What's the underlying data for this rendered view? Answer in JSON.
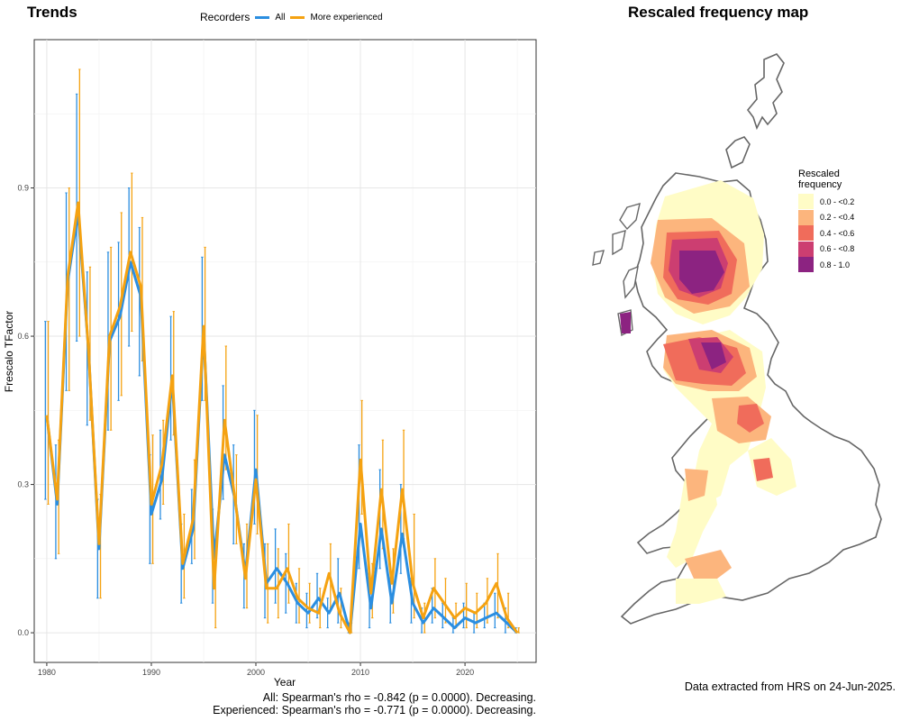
{
  "trends": {
    "title": "Trends",
    "legend_title": "Recorders",
    "legend_all": "All",
    "legend_experienced": "More experienced"
  },
  "map": {
    "title": "Rescaled frequency map",
    "legend_title_1": "Rescaled",
    "legend_title_2": "frequency",
    "legend": [
      {
        "label": "0.0 - <0.2",
        "color": "#fffcc6"
      },
      {
        "label": "0.2 - <0.4",
        "color": "#fcb57d"
      },
      {
        "label": "0.4 - <0.6",
        "color": "#f06c5b"
      },
      {
        "label": "0.6 - <0.8",
        "color": "#cc3e71"
      },
      {
        "label": "0.8 - 1.0",
        "color": "#8c2381"
      }
    ]
  },
  "stats": {
    "line1": "All: Spearman's rho = -0.842 (p = 0.0000). Decreasing.",
    "line2": "Experienced: Spearman's rho = -0.771 (p = 0.0000). Decreasing."
  },
  "footer": "Data extracted from HRS on 24-Jun-2025.",
  "chart_data": {
    "type": "line",
    "title": "Trends",
    "xlabel": "Year",
    "ylabel": "Frescalo TFactor",
    "xlim": [
      1978.8,
      2026.8
    ],
    "ylim": [
      -0.06,
      1.2
    ],
    "xticks": [
      1980,
      1990,
      2000,
      2010,
      2020
    ],
    "yticks": [
      0.0,
      0.3,
      0.6,
      0.9
    ],
    "ytick_labels": [
      "0.0",
      "0.3",
      "0.6",
      "0.9"
    ],
    "grid": true,
    "legend_position": "top",
    "colors": {
      "all": "#2b8ee0",
      "experienced": "#f5a211"
    },
    "x": [
      1980,
      1981,
      1982,
      1983,
      1984,
      1985,
      1986,
      1987,
      1988,
      1989,
      1990,
      1991,
      1992,
      1993,
      1994,
      1995,
      1996,
      1997,
      1998,
      1999,
      2000,
      2001,
      2002,
      2003,
      2004,
      2005,
      2006,
      2007,
      2008,
      2009,
      2010,
      2011,
      2012,
      2013,
      2014,
      2015,
      2016,
      2017,
      2018,
      2019,
      2020,
      2021,
      2022,
      2023,
      2024,
      2025
    ],
    "series": [
      {
        "name": "All",
        "values": [
          0.44,
          0.26,
          0.71,
          0.85,
          0.57,
          0.17,
          0.59,
          0.64,
          0.75,
          0.68,
          0.24,
          0.31,
          0.51,
          0.13,
          0.21,
          0.61,
          0.15,
          0.36,
          0.27,
          0.12,
          0.33,
          0.1,
          0.13,
          0.1,
          0.06,
          0.04,
          0.07,
          0.04,
          0.08,
          0.0,
          0.22,
          0.05,
          0.21,
          0.06,
          0.2,
          0.06,
          0.02,
          0.05,
          0.03,
          0.01,
          0.03,
          0.02,
          0.03,
          0.04,
          0.02,
          0.0
        ],
        "lower": [
          0.27,
          0.15,
          0.49,
          0.59,
          0.42,
          0.07,
          0.41,
          0.47,
          0.58,
          0.52,
          0.14,
          0.23,
          0.39,
          0.06,
          0.14,
          0.47,
          0.06,
          0.27,
          0.18,
          0.05,
          0.22,
          0.03,
          0.06,
          0.04,
          0.02,
          0.01,
          0.03,
          0.01,
          0.02,
          0.0,
          0.13,
          0.01,
          0.13,
          0.02,
          0.12,
          0.02,
          0.0,
          0.02,
          0.01,
          0.0,
          0.01,
          0.0,
          0.01,
          0.01,
          0.0,
          0.0
        ],
        "upper": [
          0.63,
          0.38,
          0.89,
          1.09,
          0.73,
          0.27,
          0.77,
          0.79,
          0.9,
          0.82,
          0.36,
          0.41,
          0.64,
          0.22,
          0.29,
          0.76,
          0.25,
          0.5,
          0.38,
          0.18,
          0.45,
          0.18,
          0.21,
          0.16,
          0.1,
          0.08,
          0.12,
          0.07,
          0.15,
          0.02,
          0.38,
          0.1,
          0.33,
          0.13,
          0.3,
          0.11,
          0.05,
          0.09,
          0.06,
          0.03,
          0.06,
          0.04,
          0.06,
          0.08,
          0.05,
          0.01
        ]
      },
      {
        "name": "More experienced",
        "values": [
          0.44,
          0.27,
          0.72,
          0.87,
          0.57,
          0.18,
          0.6,
          0.66,
          0.77,
          0.7,
          0.26,
          0.34,
          0.52,
          0.14,
          0.23,
          0.62,
          0.09,
          0.43,
          0.27,
          0.11,
          0.31,
          0.09,
          0.09,
          0.13,
          0.07,
          0.05,
          0.04,
          0.12,
          0.04,
          0.0,
          0.35,
          0.08,
          0.29,
          0.1,
          0.29,
          0.1,
          0.03,
          0.09,
          0.06,
          0.03,
          0.05,
          0.04,
          0.06,
          0.1,
          0.03,
          0.0
        ],
        "lower": [
          0.26,
          0.16,
          0.49,
          0.6,
          0.43,
          0.07,
          0.41,
          0.48,
          0.61,
          0.55,
          0.14,
          0.26,
          0.4,
          0.07,
          0.15,
          0.47,
          0.01,
          0.33,
          0.18,
          0.05,
          0.2,
          0.02,
          0.03,
          0.06,
          0.02,
          0.02,
          0.01,
          0.05,
          0.01,
          0.0,
          0.24,
          0.03,
          0.17,
          0.04,
          0.19,
          0.03,
          0.0,
          0.03,
          0.02,
          0.01,
          0.01,
          0.01,
          0.02,
          0.03,
          0.01,
          0.0
        ],
        "upper": [
          0.63,
          0.39,
          0.9,
          1.14,
          0.74,
          0.28,
          0.78,
          0.85,
          0.93,
          0.84,
          0.4,
          0.43,
          0.65,
          0.24,
          0.35,
          0.78,
          0.18,
          0.58,
          0.36,
          0.22,
          0.44,
          0.18,
          0.17,
          0.22,
          0.13,
          0.1,
          0.09,
          0.18,
          0.09,
          0.02,
          0.47,
          0.14,
          0.39,
          0.17,
          0.41,
          0.24,
          0.06,
          0.15,
          0.11,
          0.06,
          0.1,
          0.08,
          0.11,
          0.16,
          0.08,
          0.01
        ]
      }
    ]
  }
}
